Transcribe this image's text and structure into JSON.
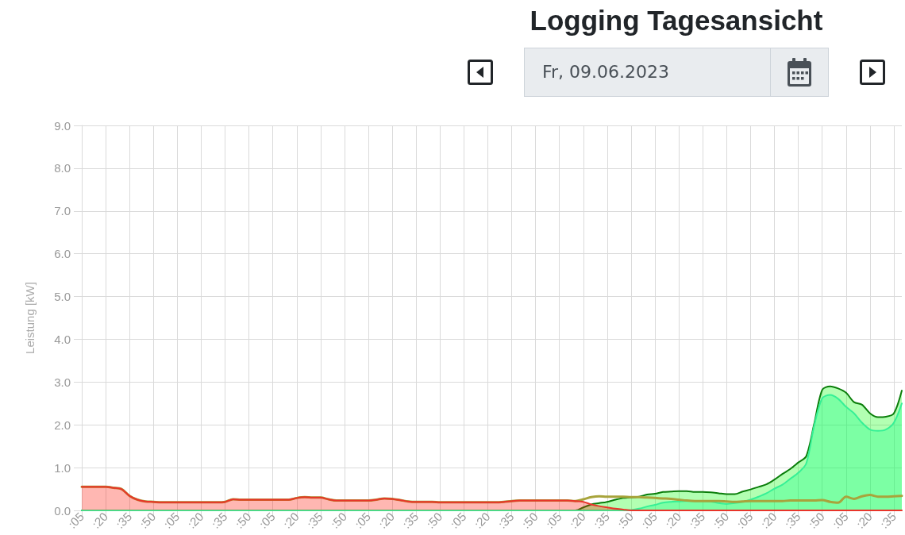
{
  "chart_data": {
    "type": "area",
    "title": "Logging Tagesansicht",
    "subtitle": "Fr, 09.06.2023",
    "ylabel": "Leistung [kW]",
    "categories": [
      ":05",
      null,
      null,
      ":20",
      null,
      null,
      ":35",
      null,
      null,
      ":50",
      null,
      null,
      ":05",
      null,
      null,
      ":20",
      null,
      null,
      ":35",
      null,
      null,
      ":50",
      null,
      null,
      ":05",
      null,
      null,
      ":20",
      null,
      null,
      ":35",
      null,
      null,
      ":50",
      null,
      null,
      ":05",
      null,
      null,
      ":20",
      null,
      null,
      ":35",
      null,
      null,
      ":50",
      null,
      null,
      ":05",
      null,
      null,
      ":20",
      null,
      null,
      ":35",
      null,
      null,
      ":50",
      null,
      null,
      ":05",
      null,
      null,
      ":20",
      null,
      null,
      ":35",
      null,
      null,
      ":50",
      null,
      null,
      ":05",
      null,
      null,
      ":20",
      null,
      null,
      ":35",
      null,
      null,
      ":50",
      null,
      null,
      ":05",
      null,
      null,
      ":20",
      null,
      null,
      ":35",
      null,
      null,
      ":50",
      null,
      null,
      ":05",
      null,
      null,
      ":20",
      null,
      null,
      ":35",
      null
    ],
    "series": [
      {
        "color": "#0a7d0a",
        "values": [
          0,
          0,
          0,
          0,
          0,
          0,
          0,
          0,
          0,
          0,
          0,
          0,
          0,
          0,
          0,
          0,
          0,
          0,
          0,
          0,
          0,
          0,
          0,
          0,
          0,
          0,
          0,
          0,
          0,
          0,
          0,
          0,
          0,
          0,
          0,
          0,
          0,
          0,
          0,
          0,
          0,
          0,
          0,
          0,
          0,
          0,
          0,
          0,
          0,
          0,
          0,
          0,
          0,
          0,
          0,
          0,
          0,
          0,
          0,
          0,
          0,
          0,
          0,
          0.07,
          0.14,
          0.17,
          0.2,
          0.25,
          0.29,
          0.3,
          0.32,
          0.37,
          0.39,
          0.43,
          0.44,
          0.45,
          0.45,
          0.43,
          0.43,
          0.42,
          0.4,
          0.38,
          0.38,
          0.44,
          0.49,
          0.55,
          0.61,
          0.72,
          0.85,
          0.97,
          1.12,
          1.27,
          2.03,
          2.82,
          2.9,
          2.85,
          2.75,
          2.53,
          2.47,
          2.27,
          2.18,
          2.19,
          2.27,
          2.8
        ]
      },
      {
        "color": "#36f096",
        "values": [
          0,
          0,
          0,
          0,
          0,
          0,
          0,
          0,
          0,
          0,
          0,
          0,
          0,
          0,
          0,
          0,
          0,
          0,
          0,
          0,
          0,
          0,
          0,
          0,
          0,
          0,
          0,
          0,
          0,
          0,
          0,
          0,
          0,
          0,
          0,
          0,
          0,
          0,
          0,
          0,
          0,
          0,
          0,
          0,
          0,
          0,
          0,
          0,
          0,
          0,
          0,
          0,
          0,
          0,
          0,
          0,
          0,
          0,
          0,
          0,
          0,
          0,
          0,
          0,
          0,
          0,
          0,
          0,
          0,
          0.01,
          0.04,
          0.09,
          0.13,
          0.18,
          0.2,
          0.21,
          0.22,
          0.22,
          0.22,
          0.21,
          0.17,
          0.15,
          0.17,
          0.2,
          0.25,
          0.32,
          0.4,
          0.51,
          0.6,
          0.74,
          0.88,
          1.1,
          1.99,
          2.62,
          2.7,
          2.61,
          2.42,
          2.27,
          2.05,
          1.89,
          1.86,
          1.89,
          2.05,
          2.5
        ]
      },
      {
        "type": "line",
        "color": "#a8a43c",
        "values": [
          0.55,
          0.55,
          0.55,
          0.55,
          0.53,
          0.5,
          0.34,
          0.25,
          0.21,
          0.2,
          0.19,
          0.19,
          0.19,
          0.19,
          0.19,
          0.19,
          0.19,
          0.19,
          0.2,
          0.26,
          0.25,
          0.25,
          0.25,
          0.25,
          0.25,
          0.25,
          0.25,
          0.29,
          0.31,
          0.3,
          0.3,
          0.26,
          0.23,
          0.23,
          0.23,
          0.23,
          0.23,
          0.25,
          0.28,
          0.27,
          0.24,
          0.21,
          0.2,
          0.2,
          0.2,
          0.19,
          0.19,
          0.19,
          0.19,
          0.19,
          0.19,
          0.19,
          0.19,
          0.2,
          0.22,
          0.23,
          0.23,
          0.23,
          0.23,
          0.23,
          0.23,
          0.23,
          0.22,
          0.26,
          0.31,
          0.33,
          0.32,
          0.32,
          0.32,
          0.31,
          0.31,
          0.3,
          0.29,
          0.28,
          0.27,
          0.25,
          0.23,
          0.22,
          0.22,
          0.22,
          0.22,
          0.21,
          0.2,
          0.21,
          0.22,
          0.22,
          0.22,
          0.22,
          0.22,
          0.23,
          0.23,
          0.23,
          0.23,
          0.24,
          0.2,
          0.18,
          0.32,
          0.27,
          0.33,
          0.36,
          0.32,
          0.32,
          0.33,
          0.34
        ]
      },
      {
        "color": "#e8352a",
        "values": [
          0.55,
          0.55,
          0.55,
          0.55,
          0.53,
          0.5,
          0.34,
          0.25,
          0.21,
          0.2,
          0.19,
          0.19,
          0.19,
          0.19,
          0.19,
          0.19,
          0.19,
          0.19,
          0.2,
          0.26,
          0.25,
          0.25,
          0.25,
          0.25,
          0.25,
          0.25,
          0.25,
          0.29,
          0.31,
          0.3,
          0.3,
          0.26,
          0.23,
          0.23,
          0.23,
          0.23,
          0.23,
          0.25,
          0.28,
          0.27,
          0.24,
          0.21,
          0.2,
          0.2,
          0.2,
          0.19,
          0.19,
          0.19,
          0.19,
          0.19,
          0.19,
          0.19,
          0.19,
          0.2,
          0.22,
          0.23,
          0.23,
          0.23,
          0.23,
          0.23,
          0.23,
          0.23,
          0.22,
          0.2,
          0.14,
          0.1,
          0.07,
          0.04,
          0.02,
          0,
          0,
          0,
          0,
          0,
          0,
          0,
          0,
          0,
          0,
          0,
          0,
          0,
          0,
          0,
          0,
          0,
          0,
          0,
          0,
          0,
          0,
          0,
          0,
          0,
          0,
          0,
          0,
          0,
          0,
          0,
          0,
          0,
          0,
          0
        ]
      }
    ],
    "ylim": [
      0,
      9
    ],
    "yticks": [
      {
        "value": 0,
        "label": "0.0"
      },
      {
        "value": 1,
        "label": "1.0"
      },
      {
        "value": 2,
        "label": "2.0"
      },
      {
        "value": 3,
        "label": "3.0"
      },
      {
        "value": 4,
        "label": "4.0"
      },
      {
        "value": 5,
        "label": "5.0"
      },
      {
        "value": 6,
        "label": "6.0"
      },
      {
        "value": 7,
        "label": "7.0"
      },
      {
        "value": 8,
        "label": "8.0"
      },
      {
        "value": 9,
        "label": "9.0"
      }
    ],
    "grid": true,
    "marker": "none"
  }
}
